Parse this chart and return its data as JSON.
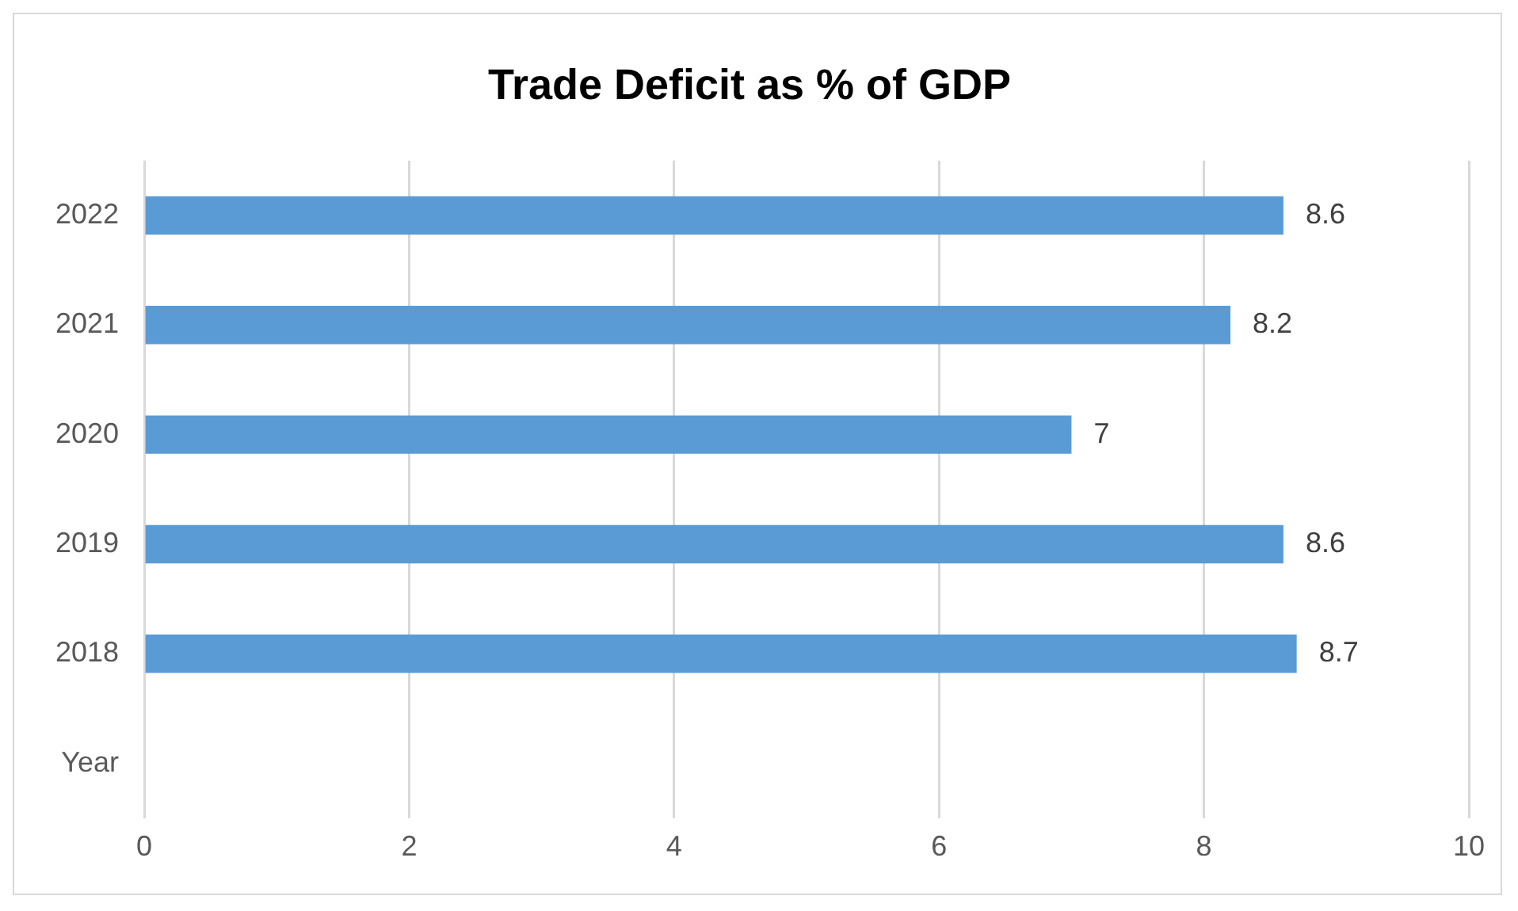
{
  "chart_data": {
    "type": "bar",
    "title": "Trade Deficit as % of GDP",
    "orientation": "horizontal",
    "categories": [
      "2022",
      "2021",
      "2020",
      "2019",
      "2018",
      "Year"
    ],
    "values": [
      8.6,
      8.2,
      7,
      8.6,
      8.7,
      null
    ],
    "color": "#5b9bd5",
    "xlim": [
      0,
      10
    ],
    "xticks": [
      0,
      2,
      4,
      6,
      8,
      10
    ],
    "grid": "x",
    "data_labels": true,
    "legend": false
  }
}
